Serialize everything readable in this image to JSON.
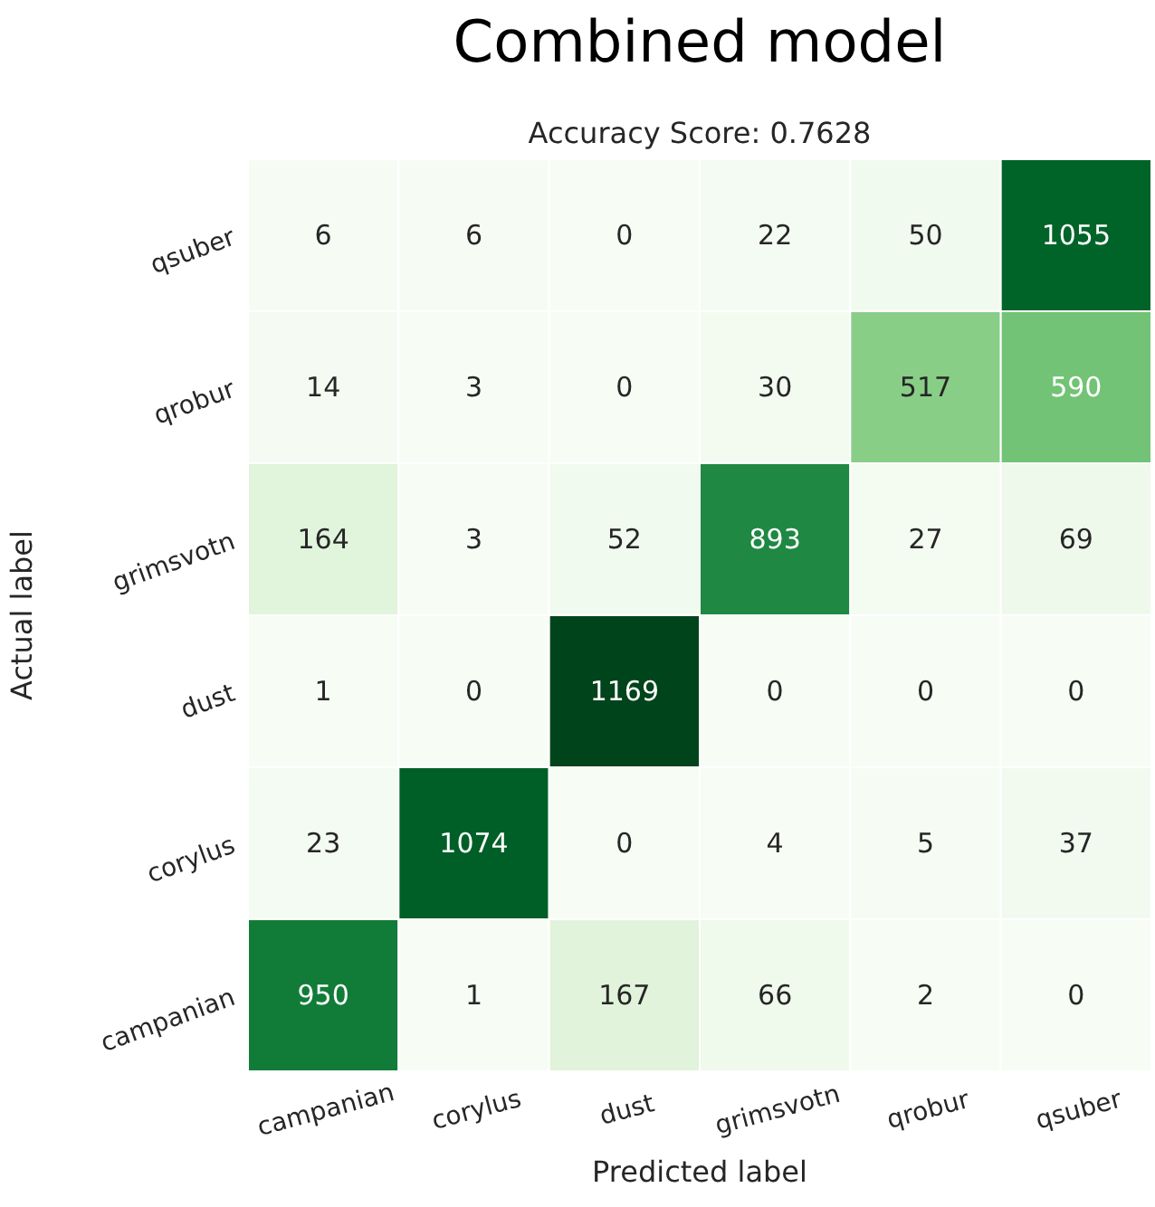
{
  "chart_data": {
    "type": "heatmap",
    "title": "Combined model",
    "subtitle": "Accuracy Score: 0.7628",
    "xlabel": "Predicted label",
    "ylabel": "Actual label",
    "categories": [
      "campanian",
      "corylus",
      "dust",
      "grimsvotn",
      "qrobur",
      "qsuber"
    ],
    "y_categories": [
      "qsuber",
      "qrobur",
      "grimsvotn",
      "dust",
      "corylus",
      "campanian"
    ],
    "cells": [
      [
        6,
        6,
        0,
        22,
        50,
        1055
      ],
      [
        14,
        3,
        0,
        30,
        517,
        590
      ],
      [
        164,
        3,
        52,
        893,
        27,
        69
      ],
      [
        1,
        0,
        1169,
        0,
        0,
        0
      ],
      [
        23,
        1074,
        0,
        4,
        5,
        37
      ],
      [
        950,
        1,
        167,
        66,
        2,
        0
      ]
    ],
    "data_labels": true
  }
}
